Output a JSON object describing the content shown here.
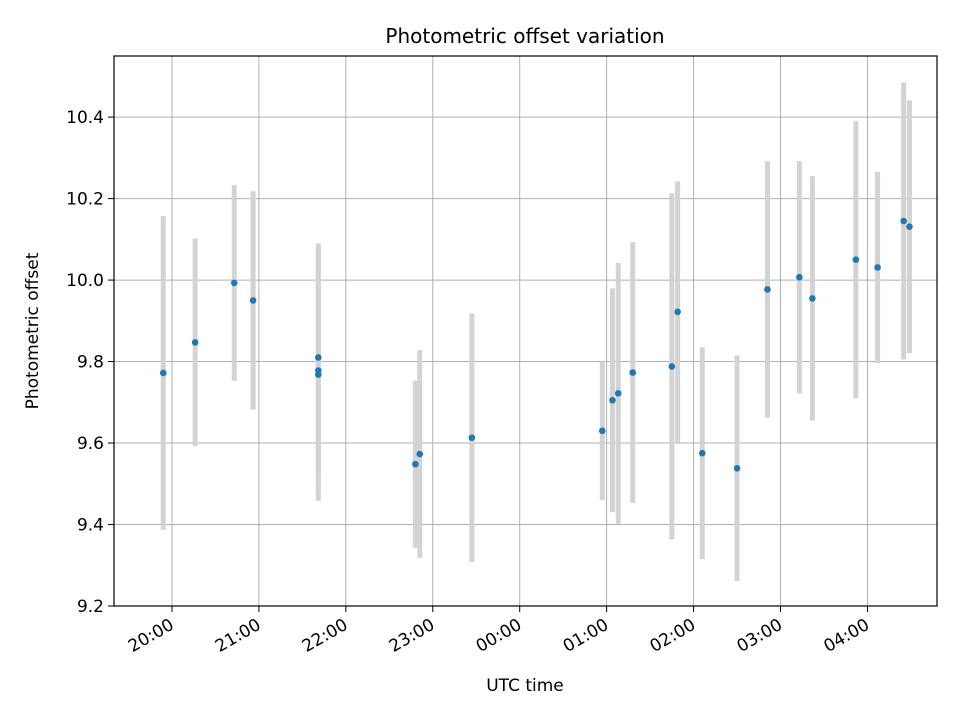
{
  "chart_data": {
    "type": "scatter",
    "title": "Photometric offset variation",
    "xlabel": "UTC time",
    "ylabel": "Photometric offset",
    "x_is_time": true,
    "xlim": [
      "19:20",
      "04:48"
    ],
    "ylim": [
      9.2,
      10.55
    ],
    "x_ticks": [
      "20:00",
      "21:00",
      "22:00",
      "23:00",
      "00:00",
      "01:00",
      "02:00",
      "03:00",
      "04:00"
    ],
    "y_ticks": [
      "9.2",
      "9.4",
      "9.6",
      "9.8",
      "10.0",
      "10.2",
      "10.4"
    ],
    "grid": true,
    "point_color": "#1f77b4",
    "errorbar_color": "#d3d3d3",
    "points": [
      {
        "x": "19:54",
        "y": 9.772,
        "yerr": 0.385
      },
      {
        "x": "20:16",
        "y": 9.847,
        "yerr": 0.255
      },
      {
        "x": "20:43",
        "y": 9.993,
        "yerr": 0.24
      },
      {
        "x": "20:56",
        "y": 9.95,
        "yerr": 0.268
      },
      {
        "x": "21:41",
        "y": 9.81,
        "yerr": 0.28
      },
      {
        "x": "21:41",
        "y": 9.778,
        "yerr": 0.3
      },
      {
        "x": "21:41",
        "y": 9.768,
        "yerr": 0.31
      },
      {
        "x": "22:48",
        "y": 9.548,
        "yerr": 0.205
      },
      {
        "x": "22:51",
        "y": 9.573,
        "yerr": 0.255
      },
      {
        "x": "23:27",
        "y": 9.613,
        "yerr": 0.305
      },
      {
        "x": "00:57",
        "y": 9.63,
        "yerr": 0.17
      },
      {
        "x": "01:04",
        "y": 9.705,
        "yerr": 0.275
      },
      {
        "x": "01:08",
        "y": 9.722,
        "yerr": 0.32
      },
      {
        "x": "01:18",
        "y": 9.773,
        "yerr": 0.32
      },
      {
        "x": "01:45",
        "y": 9.788,
        "yerr": 0.425
      },
      {
        "x": "01:49",
        "y": 9.922,
        "yerr": 0.32
      },
      {
        "x": "02:06",
        "y": 9.575,
        "yerr": 0.26
      },
      {
        "x": "02:30",
        "y": 9.538,
        "yerr": 0.277
      },
      {
        "x": "02:51",
        "y": 9.977,
        "yerr": 0.315
      },
      {
        "x": "03:13",
        "y": 10.007,
        "yerr": 0.285
      },
      {
        "x": "03:22",
        "y": 9.955,
        "yerr": 0.3
      },
      {
        "x": "03:52",
        "y": 10.05,
        "yerr": 0.34
      },
      {
        "x": "04:07",
        "y": 10.031,
        "yerr": 0.235
      },
      {
        "x": "04:25",
        "y": 10.145,
        "yerr": 0.34
      },
      {
        "x": "04:29",
        "y": 10.131,
        "yerr": 0.31
      }
    ]
  }
}
